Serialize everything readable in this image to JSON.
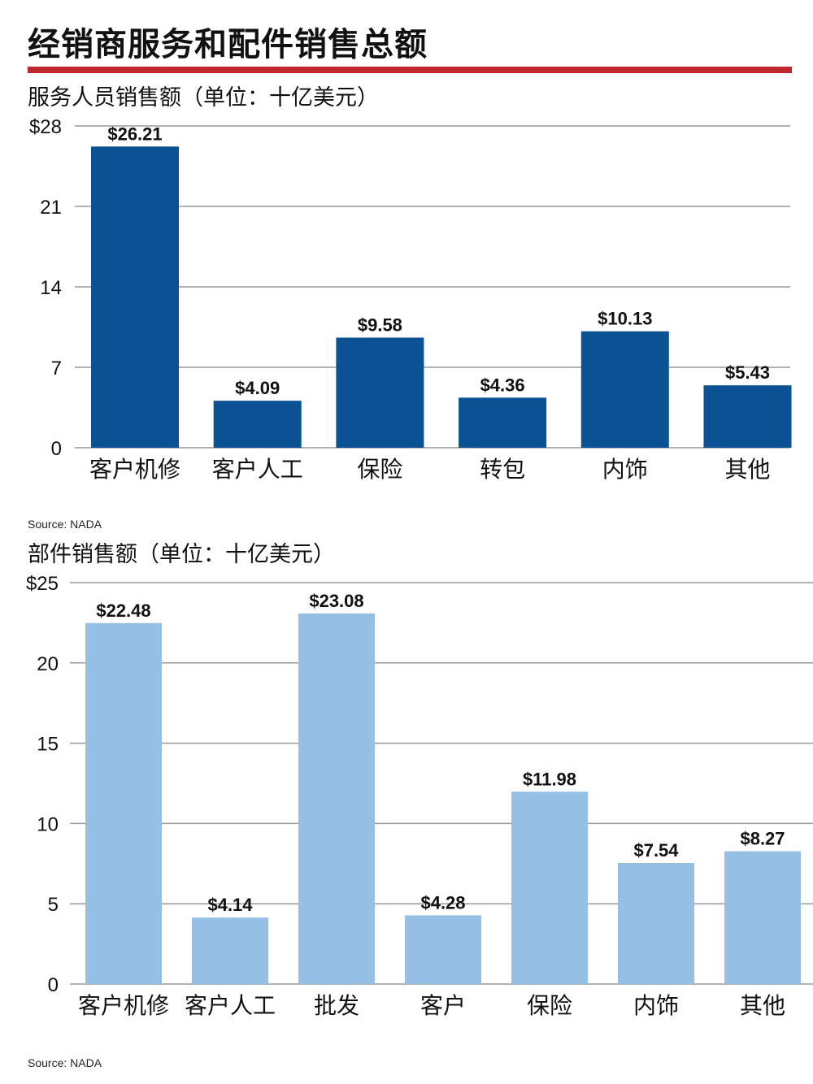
{
  "page": {
    "title": "经销商服务和配件销售总额"
  },
  "chart_data": [
    {
      "type": "bar",
      "title": "服务人员销售额（单位：十亿美元）",
      "source": "Source: NADA",
      "categories": [
        "客户机修",
        "客户人工",
        "保险",
        "转包",
        "内饰",
        "其他"
      ],
      "values": [
        26.21,
        4.09,
        9.58,
        4.36,
        10.13,
        5.43
      ],
      "value_labels": [
        "$26.21",
        "$4.09",
        "$9.58",
        "$4.36",
        "$10.13",
        "$5.43"
      ],
      "ylim": [
        0,
        28
      ],
      "yticks": [
        0,
        7,
        14,
        21,
        28
      ],
      "ytick_labels": [
        "0",
        "7",
        "14",
        "21",
        "$28"
      ],
      "grid": true,
      "bar_color": "#0a5294"
    },
    {
      "type": "bar",
      "title": "部件销售额（单位：十亿美元）",
      "source": "Source: NADA",
      "categories": [
        "客户机修",
        "客户人工",
        "批发",
        "客户",
        "保险",
        "内饰",
        "其他"
      ],
      "values": [
        22.48,
        4.14,
        23.08,
        4.28,
        11.98,
        7.54,
        8.27
      ],
      "value_labels": [
        "$22.48",
        "$4.14",
        "$23.08",
        "$4.28",
        "$11.98",
        "$7.54",
        "$8.27"
      ],
      "ylim": [
        0,
        25
      ],
      "yticks": [
        0,
        5,
        10,
        15,
        20,
        25
      ],
      "ytick_labels": [
        "0",
        "5",
        "10",
        "15",
        "20",
        "$25"
      ],
      "grid": true,
      "bar_color": "#95bfe4"
    }
  ],
  "colors": {
    "accent_rule": "#c0282d",
    "grid": "#9a9a9a",
    "text": "#111111"
  }
}
